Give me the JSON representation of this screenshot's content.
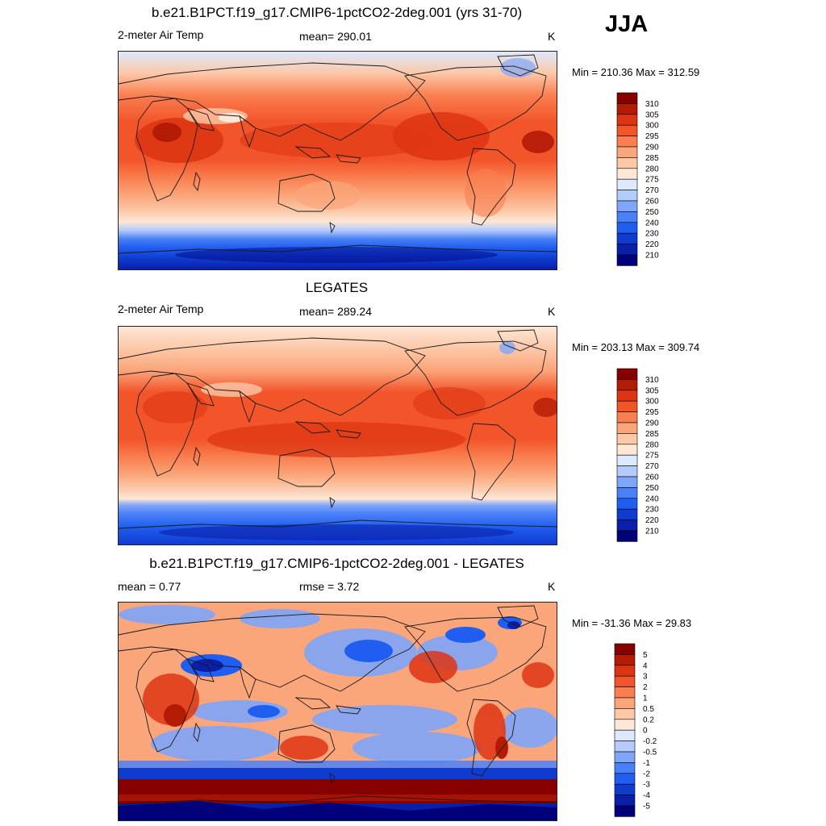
{
  "season": "JJA",
  "colors": {
    "abs_scale": [
      "#00007a",
      "#0a1fa8",
      "#0f3ccf",
      "#1f5ef0",
      "#4a80f7",
      "#7fa6f9",
      "#b3ccfb",
      "#dde9fd",
      "#fde7d6",
      "#fcc8a8",
      "#fba57a",
      "#f97f50",
      "#f3552b",
      "#dd3513",
      "#b41b05",
      "#870000"
    ],
    "diff_scale": [
      "#00007a",
      "#0a1fa8",
      "#0f3ccf",
      "#1f5ef0",
      "#4a80f7",
      "#7fa6f9",
      "#b3ccfb",
      "#dde9fd",
      "#fde7d6",
      "#fcc8a8",
      "#fba57a",
      "#f97f50",
      "#f3552b",
      "#dd3513",
      "#b41b05",
      "#870000"
    ]
  },
  "panels": [
    {
      "title": "b.e21.B1PCT.f19_g17.CMIP6-1pctCO2-2deg.001 (yrs 31-70)",
      "left_label": "2-meter Air Temp",
      "center_label": "mean= 290.01",
      "units": "K",
      "minmax": "Min = 210.36 Max = 312.59",
      "legend_labels": [
        "310",
        "305",
        "300",
        "295",
        "290",
        "285",
        "280",
        "275",
        "270",
        "260",
        "250",
        "240",
        "230",
        "220",
        "210"
      ]
    },
    {
      "title": "LEGATES",
      "left_label": "2-meter Air Temp",
      "center_label": "mean= 289.24",
      "units": "K",
      "minmax": "Min = 203.13 Max = 309.74",
      "legend_labels": [
        "310",
        "305",
        "300",
        "295",
        "290",
        "285",
        "280",
        "275",
        "270",
        "260",
        "250",
        "240",
        "230",
        "220",
        "210"
      ]
    },
    {
      "title": "b.e21.B1PCT.f19_g17.CMIP6-1pctCO2-2deg.001 - LEGATES",
      "left_label": "mean =   0.77",
      "center_label": "rmse =   3.72",
      "units": "K",
      "minmax": "Min = -31.36 Max =  29.83",
      "legend_labels": [
        "5",
        "4",
        "3",
        "2",
        "1",
        "0.5",
        "0.2",
        "0",
        "-0.2",
        "-0.5",
        "-1",
        "-2",
        "-3",
        "-4",
        "-5"
      ]
    }
  ]
}
